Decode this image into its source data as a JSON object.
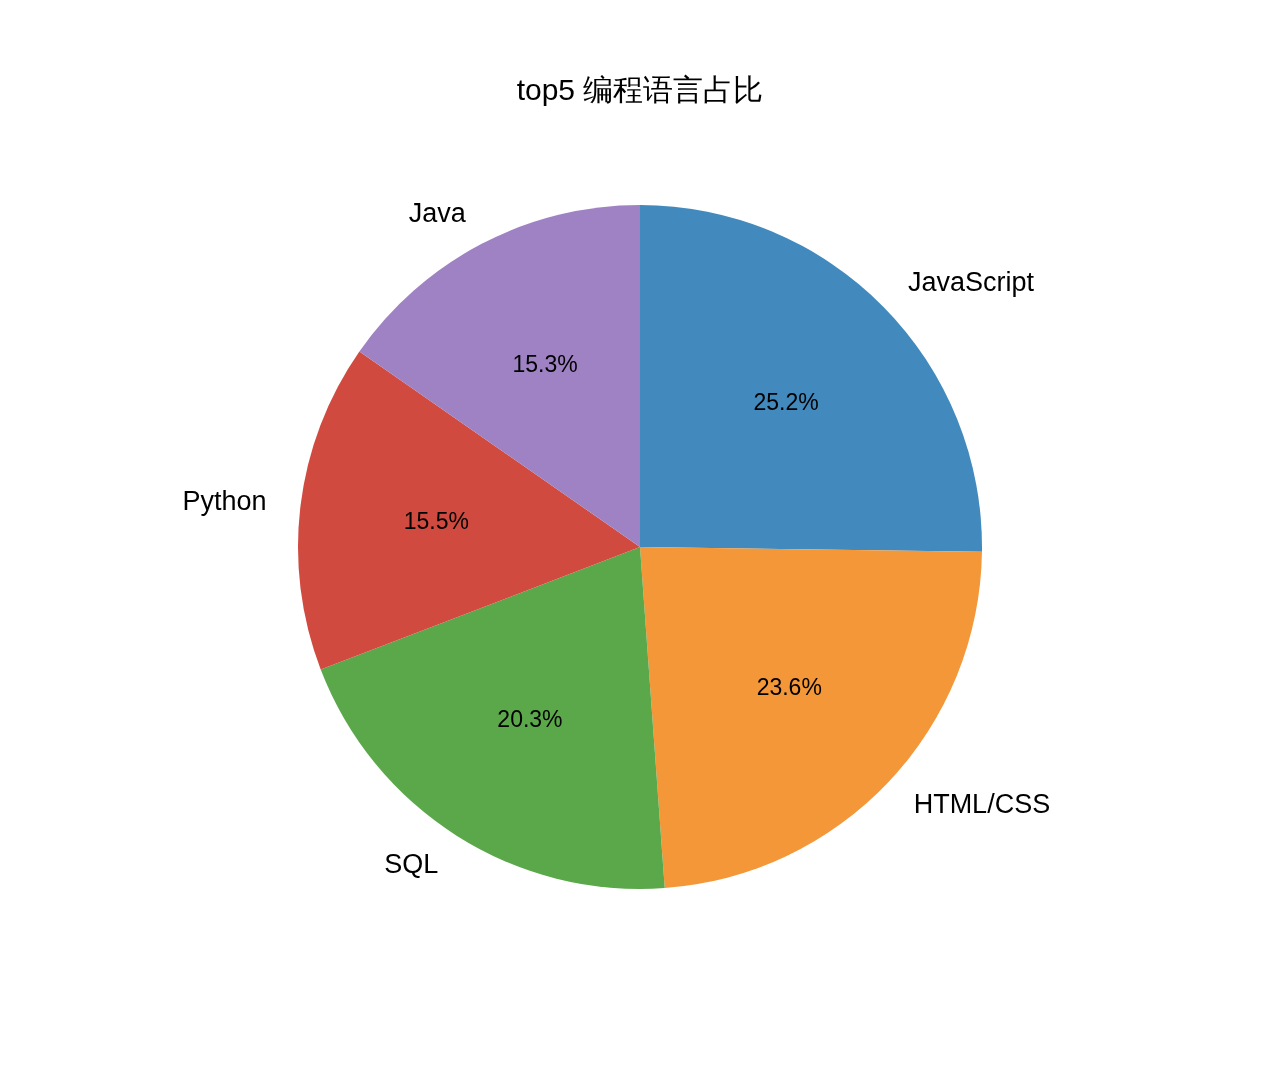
{
  "chart_data": {
    "type": "pie",
    "title": "top5 编程语言占比",
    "categories": [
      "JavaScript",
      "HTML/CSS",
      "SQL",
      "Python",
      "Java"
    ],
    "values": [
      25.2,
      23.6,
      20.3,
      15.5,
      15.3
    ],
    "colors": [
      "#428abd",
      "#f39738",
      "#5ba84b",
      "#d04a3f",
      "#9f82c3"
    ],
    "value_labels": [
      "25.2%",
      "23.6%",
      "20.3%",
      "15.5%",
      "15.3%"
    ]
  }
}
